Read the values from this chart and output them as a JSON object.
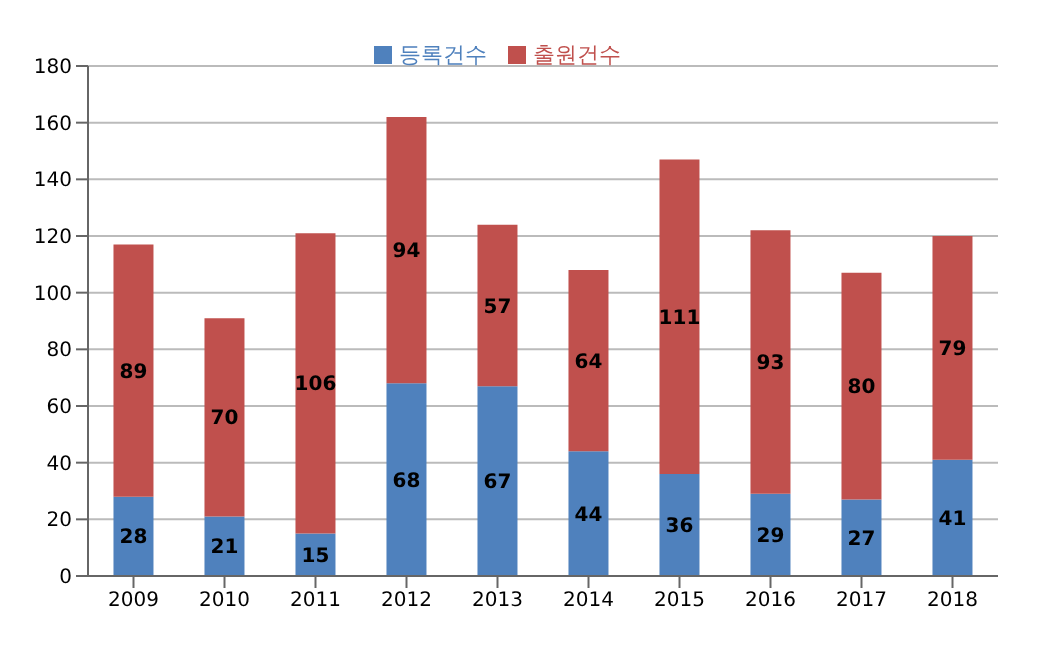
{
  "chart_data": {
    "type": "bar",
    "stacked": true,
    "categories": [
      "2009",
      "2010",
      "2011",
      "2012",
      "2013",
      "2014",
      "2015",
      "2016",
      "2017",
      "2018"
    ],
    "series": [
      {
        "name": "등록건수",
        "color": "#4f81bd",
        "values": [
          28,
          21,
          15,
          68,
          67,
          44,
          36,
          29,
          27,
          41
        ]
      },
      {
        "name": "출원건수",
        "color": "#c0504d",
        "values": [
          89,
          70,
          106,
          94,
          57,
          64,
          111,
          93,
          80,
          79
        ]
      }
    ],
    "ylim": [
      0,
      180
    ],
    "yticks": [
      0,
      20,
      40,
      60,
      80,
      100,
      120,
      140,
      160,
      180
    ],
    "grid": "y",
    "legend": "top",
    "data_labels": true
  }
}
